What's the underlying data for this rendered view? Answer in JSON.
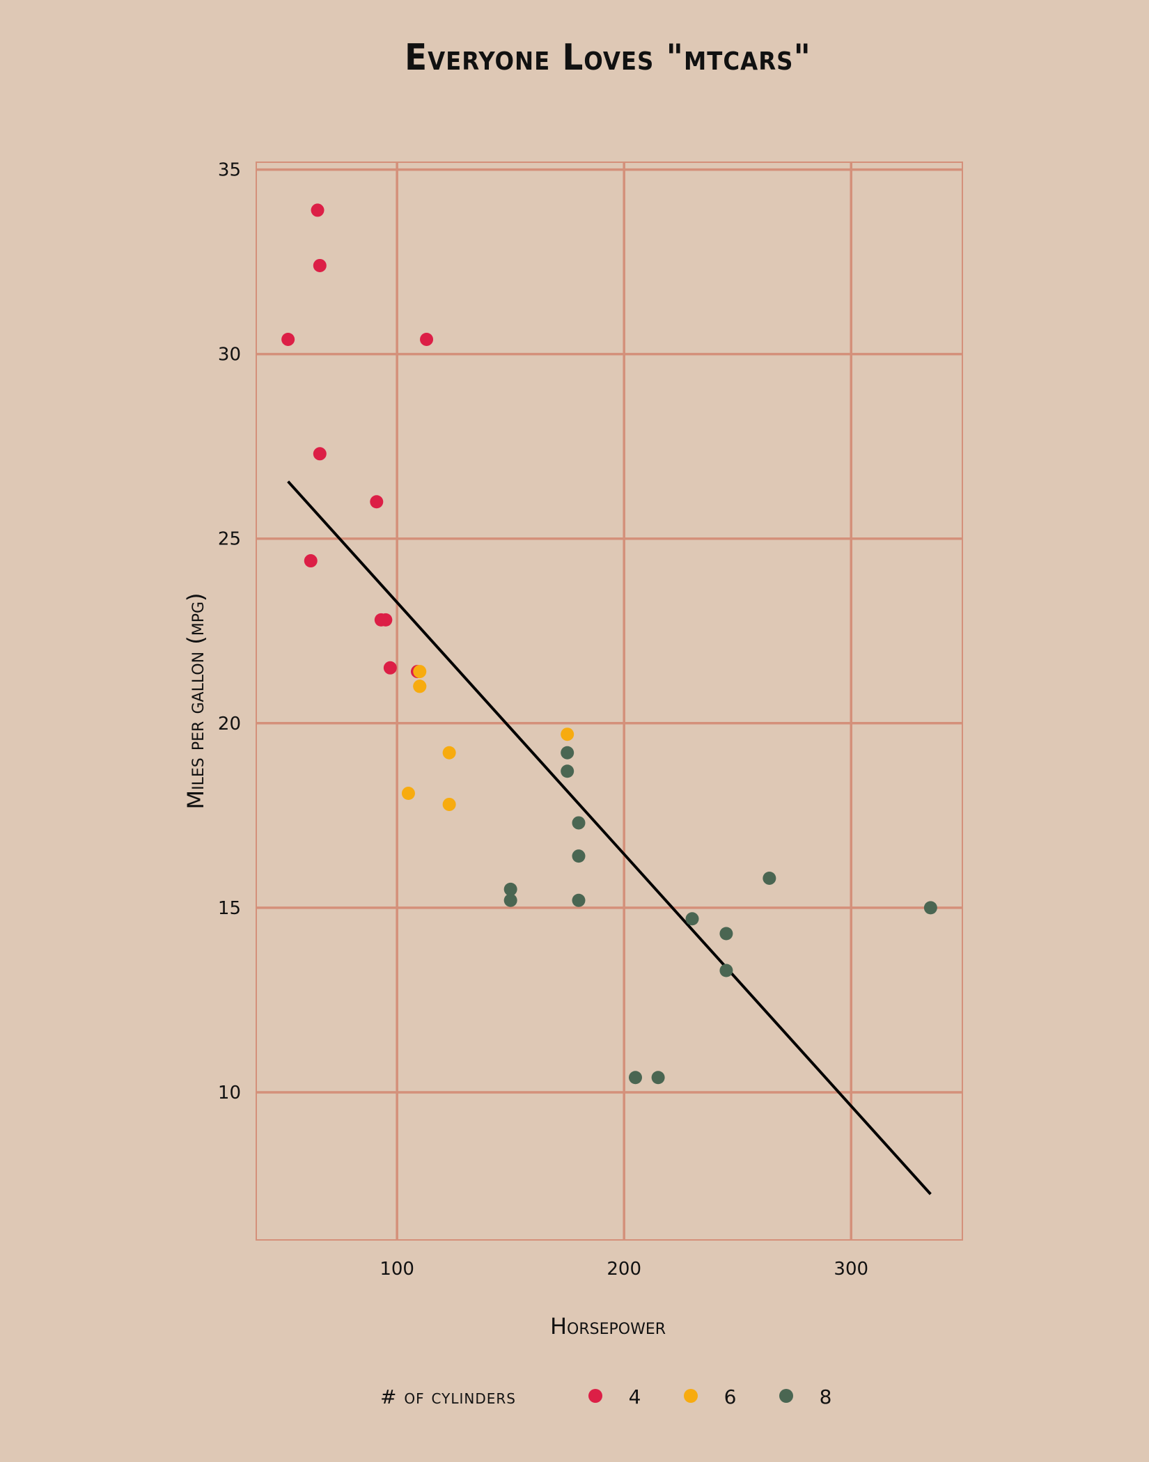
{
  "chart_data": {
    "type": "scatter",
    "title": "Everyone Loves \"mtcars\"",
    "xlabel": "Horsepower",
    "ylabel": "Miles per gallon (mpg)",
    "xlim": [
      38,
      349
    ],
    "ylim": [
      6.0,
      35.2
    ],
    "xticks": [
      100,
      200,
      300
    ],
    "yticks": [
      10,
      15,
      20,
      25,
      30,
      35
    ],
    "grid": true,
    "legend": {
      "title": "# of cylinders",
      "placement": "bottom",
      "entries": [
        {
          "label": "4",
          "color": "#dc1f46"
        },
        {
          "label": "6",
          "color": "#f7ab0f"
        },
        {
          "label": "8",
          "color": "#4a6652"
        }
      ]
    },
    "series": [
      {
        "name": "4",
        "color": "#dc1f46",
        "points": [
          {
            "x": 93,
            "y": 22.8
          },
          {
            "x": 62,
            "y": 24.4
          },
          {
            "x": 95,
            "y": 22.8
          },
          {
            "x": 66,
            "y": 32.4
          },
          {
            "x": 52,
            "y": 30.4
          },
          {
            "x": 65,
            "y": 33.9
          },
          {
            "x": 97,
            "y": 21.5
          },
          {
            "x": 66,
            "y": 27.3
          },
          {
            "x": 91,
            "y": 26.0
          },
          {
            "x": 113,
            "y": 30.4
          },
          {
            "x": 109,
            "y": 21.4
          }
        ]
      },
      {
        "name": "6",
        "color": "#f7ab0f",
        "points": [
          {
            "x": 110,
            "y": 21.0
          },
          {
            "x": 110,
            "y": 21.0
          },
          {
            "x": 110,
            "y": 21.4
          },
          {
            "x": 105,
            "y": 18.1
          },
          {
            "x": 123,
            "y": 19.2
          },
          {
            "x": 123,
            "y": 17.8
          },
          {
            "x": 175,
            "y": 19.7
          }
        ]
      },
      {
        "name": "8",
        "color": "#4a6652",
        "points": [
          {
            "x": 175,
            "y": 18.7
          },
          {
            "x": 245,
            "y": 14.3
          },
          {
            "x": 180,
            "y": 16.4
          },
          {
            "x": 180,
            "y": 17.3
          },
          {
            "x": 180,
            "y": 15.2
          },
          {
            "x": 205,
            "y": 10.4
          },
          {
            "x": 215,
            "y": 10.4
          },
          {
            "x": 230,
            "y": 14.7
          },
          {
            "x": 150,
            "y": 15.5
          },
          {
            "x": 150,
            "y": 15.2
          },
          {
            "x": 245,
            "y": 13.3
          },
          {
            "x": 175,
            "y": 19.2
          },
          {
            "x": 264,
            "y": 15.8
          },
          {
            "x": 335,
            "y": 15.0
          }
        ]
      }
    ],
    "trendline": {
      "color": "#000000",
      "points": [
        {
          "x": 52,
          "y": 26.55
        },
        {
          "x": 335,
          "y": 7.24
        }
      ]
    },
    "colors": {
      "background": "#dec8b5",
      "grid": "#d4907a",
      "text": "#111111"
    }
  }
}
